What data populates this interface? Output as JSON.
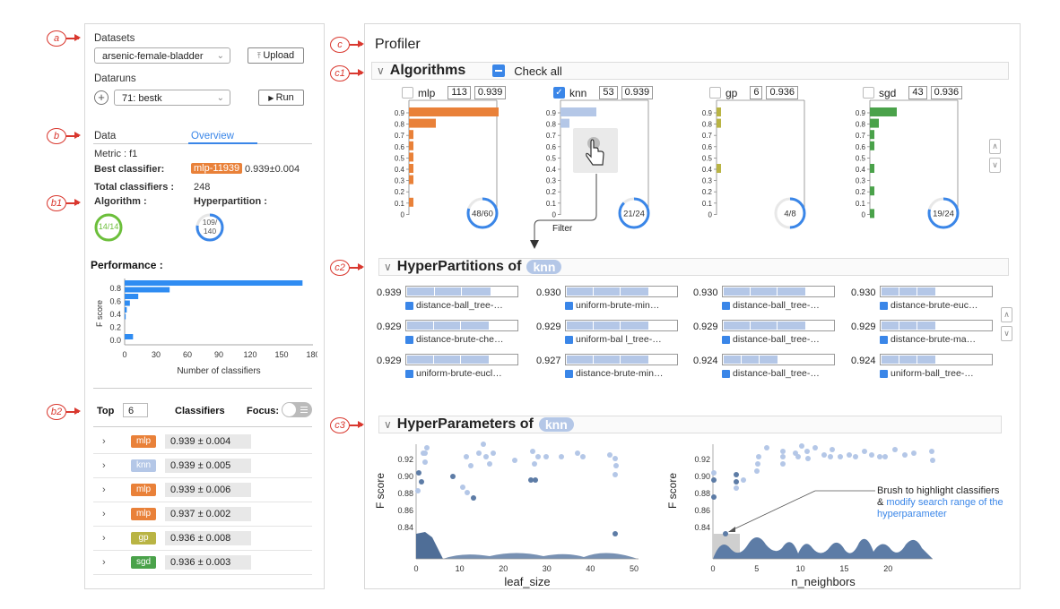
{
  "callouts": {
    "a": "a",
    "b": "b",
    "b1": "b1",
    "b2": "b2",
    "c": "c",
    "c1": "c1",
    "c2": "c2",
    "c3": "c3"
  },
  "sidebar": {
    "datasets_label": "Datasets",
    "dataset_value": "arsenic-female-bladder",
    "upload_label": "Upload",
    "dataruns_label": "Dataruns",
    "datarun_value": "71: bestk",
    "run_label": "Run",
    "tab_data": "Data",
    "tab_overview": "Overview",
    "metric": "Metric : f1",
    "best_classifier_label": "Best classifier:",
    "best_classifier_badge": "mlp-11939",
    "best_classifier_score": "0.939±0.004",
    "total_label": "Total classifiers :",
    "total_value": "248",
    "algorithm_label": "Algorithm :",
    "algorithm_ring": "14/14",
    "hyperpartition_label": "Hyperpartition :",
    "hyperpartition_ring_top": "109/",
    "hyperpartition_ring_bottom": "140",
    "performance_title": "Performance :",
    "perf_chart": {
      "ylabel": "F score",
      "xlabel": "Number of classifiers",
      "yticks": [
        "0.8",
        "0.6",
        "0.4",
        "0.2",
        "0.0"
      ],
      "xticks": [
        "0",
        "30",
        "60",
        "90",
        "120",
        "150",
        "180"
      ],
      "values": [
        170,
        43,
        13,
        5,
        2,
        1,
        0,
        0,
        8
      ]
    },
    "top_label": "Top",
    "top_value": "6",
    "classifiers_label": "Classifiers",
    "focus_label": "Focus:",
    "rows": [
      {
        "algo": "mlp",
        "score": "0.939 ± 0.004",
        "color": "#e98139"
      },
      {
        "algo": "knn",
        "score": "0.939 ± 0.005",
        "color": "#b4c7e7"
      },
      {
        "algo": "mlp",
        "score": "0.939 ± 0.006",
        "color": "#e98139"
      },
      {
        "algo": "mlp",
        "score": "0.937 ± 0.002",
        "color": "#e98139"
      },
      {
        "algo": "gp",
        "score": "0.936 ± 0.008",
        "color": "#b9b444"
      },
      {
        "algo": "sgd",
        "score": "0.936 ± 0.003",
        "color": "#4aa24a"
      }
    ]
  },
  "profiler": {
    "title": "Profiler",
    "algorithms_title": "Algorithms",
    "check_all": "Check all",
    "yticks": [
      "0.9",
      "0.8",
      "0.7",
      "0.6",
      "0.5",
      "0.4",
      "0.3",
      "0.2",
      "0.1",
      "0"
    ],
    "algos": [
      {
        "name": "mlp",
        "count": "113",
        "best": "0.939",
        "checked": false,
        "color": "#e98139",
        "ring": "48/60",
        "ring_frac": 0.8,
        "bars": [
          100,
          30,
          5,
          5,
          5,
          5,
          5,
          0,
          5,
          0
        ]
      },
      {
        "name": "knn",
        "count": "53",
        "best": "0.939",
        "checked": true,
        "color": "#b4c7e7",
        "ring": "21/24",
        "ring_frac": 0.875,
        "bars": [
          40,
          10,
          0,
          0,
          0,
          0,
          0,
          0,
          0,
          0
        ]
      },
      {
        "name": "gp",
        "count": "6",
        "best": "0.936",
        "checked": false,
        "color": "#b9b444",
        "ring": "4/8",
        "ring_frac": 0.5,
        "bars": [
          5,
          5,
          0,
          0,
          0,
          5,
          0,
          0,
          0,
          0
        ]
      },
      {
        "name": "sgd",
        "count": "43",
        "best": "0.936",
        "checked": false,
        "color": "#4aa24a",
        "ring": "19/24",
        "ring_frac": 0.79,
        "bars": [
          30,
          10,
          5,
          5,
          0,
          5,
          0,
          5,
          0,
          5
        ]
      }
    ],
    "filter_label": "Filter",
    "hp_title": "HyperPartitions of",
    "algo_pill": "knn",
    "hyperpartitions": [
      {
        "score": "0.939",
        "name": "distance-ball_tree-…",
        "fill": 0.75
      },
      {
        "score": "0.930",
        "name": "uniform-brute-min…",
        "fill": 0.73
      },
      {
        "score": "0.930",
        "name": "distance-ball_tree-…",
        "fill": 0.73
      },
      {
        "score": "0.930",
        "name": "distance-brute-euc…",
        "fill": 0.48
      },
      {
        "score": "0.929",
        "name": "distance-brute-che…",
        "fill": 0.73
      },
      {
        "score": "0.929",
        "name": "uniform-bal l_tree-…",
        "fill": 0.73
      },
      {
        "score": "0.929",
        "name": "distance-ball_tree-…",
        "fill": 0.73
      },
      {
        "score": "0.929",
        "name": "distance-brute-ma…",
        "fill": 0.48
      },
      {
        "score": "0.929",
        "name": "uniform-brute-eucl…",
        "fill": 0.73
      },
      {
        "score": "0.927",
        "name": "distance-brute-min…",
        "fill": 0.73
      },
      {
        "score": "0.924",
        "name": "distance-ball_tree-…",
        "fill": 0.48
      },
      {
        "score": "0.924",
        "name": "uniform-ball_tree-…",
        "fill": 0.48
      }
    ],
    "hparam_title": "HyperParameters of",
    "leaf_size": {
      "xlabel": "leaf_size",
      "ylabel": "F score",
      "xticks": [
        "0",
        "10",
        "20",
        "30",
        "40",
        "50"
      ],
      "yticks": [
        "0.92",
        "0.90",
        "0.88",
        "0.86",
        "0.84"
      ]
    },
    "n_neighbors": {
      "xlabel": "n_neighbors",
      "ylabel": "F score",
      "xticks": [
        "0",
        "5",
        "10",
        "15",
        "20"
      ],
      "yticks": [
        "0.92",
        "0.90",
        "0.88",
        "0.86",
        "0.84"
      ]
    },
    "annotation_line1": "Brush to highlight classifiers",
    "annotation_amp": "& ",
    "annotation_blue1": "modify search range of the",
    "annotation_blue2": "hyperparameter"
  },
  "colors": {
    "accent": "#3a86e8",
    "callout": "#d9382f"
  }
}
